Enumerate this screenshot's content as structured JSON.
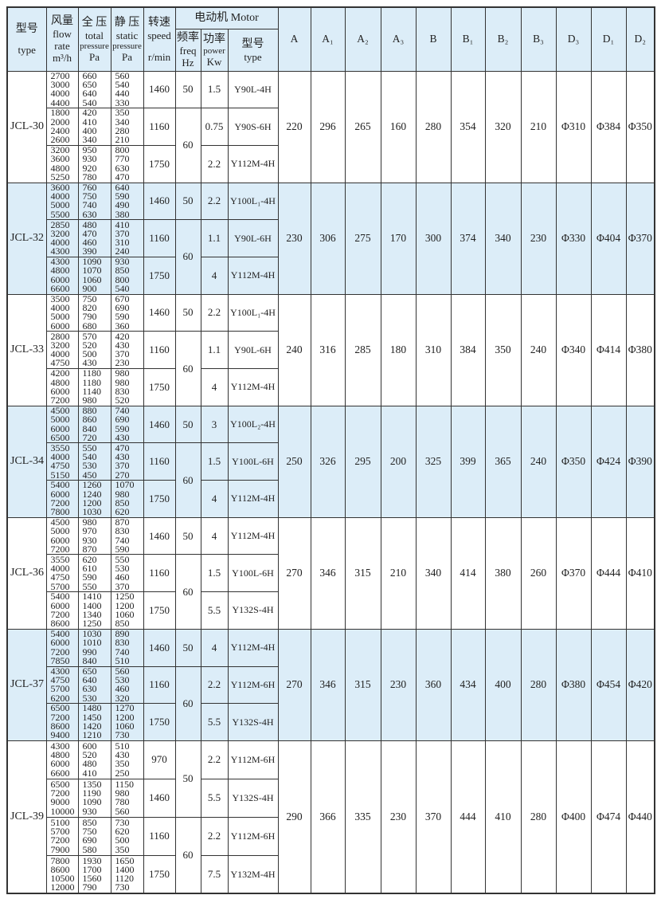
{
  "header": {
    "type": {
      "cn": "型号",
      "en": "type"
    },
    "flow": {
      "cn": "风量",
      "en1": "flow",
      "en2": "rate",
      "unit": "m³/h"
    },
    "total": {
      "cn": "全 压",
      "en1": "total",
      "en2": "pressure",
      "unit": "Pa"
    },
    "static": {
      "cn": "静 压",
      "en1": "static",
      "en2": "pressure",
      "unit": "Pa"
    },
    "speed": {
      "cn": "转速",
      "en": "speed",
      "unit": "r/min"
    },
    "motor": "电动机 Motor",
    "freq": {
      "cn": "频率",
      "en": "freq",
      "unit": "Hz"
    },
    "power": {
      "cn": "功率",
      "en": "power",
      "unit": "Kw"
    },
    "mtype": {
      "cn": "型号",
      "en": "type"
    },
    "dims": [
      "A",
      "A₁",
      "A₂",
      "A₃",
      "B",
      "B₁",
      "B₂",
      "B₃",
      "D₃",
      "D₁",
      "D₂"
    ]
  },
  "models": [
    {
      "name": "JCL-30",
      "shaded": false,
      "dims": [
        "220",
        "296",
        "265",
        "160",
        "280",
        "354",
        "320",
        "210",
        "Φ310",
        "Φ384",
        "Φ350"
      ],
      "hz": [
        {
          "value": "50",
          "span": 1
        },
        {
          "value": "60",
          "span": 2
        }
      ],
      "groups": [
        {
          "flow": [
            "2700",
            "3000",
            "4000",
            "4400"
          ],
          "total": [
            "660",
            "650",
            "640",
            "540"
          ],
          "static": [
            "560",
            "540",
            "440",
            "330"
          ],
          "speed": "1460",
          "kw": "1.5",
          "motor": "Y90L-4H"
        },
        {
          "flow": [
            "1800",
            "2000",
            "2400",
            "2600"
          ],
          "total": [
            "420",
            "410",
            "400",
            "340"
          ],
          "static": [
            "350",
            "340",
            "280",
            "210"
          ],
          "speed": "1160",
          "kw": "0.75",
          "motor": "Y90S-6H"
        },
        {
          "flow": [
            "3200",
            "3600",
            "4800",
            "5250"
          ],
          "total": [
            "950",
            "930",
            "920",
            "780"
          ],
          "static": [
            "800",
            "770",
            "630",
            "470"
          ],
          "speed": "1750",
          "kw": "2.2",
          "motor": "Y112M-4H"
        }
      ]
    },
    {
      "name": "JCL-32",
      "shaded": true,
      "dims": [
        "230",
        "306",
        "275",
        "170",
        "300",
        "374",
        "340",
        "230",
        "Φ330",
        "Φ404",
        "Φ370"
      ],
      "hz": [
        {
          "value": "50",
          "span": 1
        },
        {
          "value": "60",
          "span": 2
        }
      ],
      "groups": [
        {
          "flow": [
            "3600",
            "4000",
            "5000",
            "5500"
          ],
          "total": [
            "760",
            "750",
            "740",
            "630"
          ],
          "static": [
            "640",
            "590",
            "490",
            "380"
          ],
          "speed": "1460",
          "kw": "2.2",
          "motor": "Y100L₁-4H"
        },
        {
          "flow": [
            "2850",
            "3200",
            "4000",
            "4300"
          ],
          "total": [
            "480",
            "470",
            "460",
            "390"
          ],
          "static": [
            "410",
            "370",
            "310",
            "240"
          ],
          "speed": "1160",
          "kw": "1.1",
          "motor": "Y90L-6H"
        },
        {
          "flow": [
            "4300",
            "4800",
            "6000",
            "6600"
          ],
          "total": [
            "1090",
            "1070",
            "1060",
            "900"
          ],
          "static": [
            "930",
            "850",
            "800",
            "540"
          ],
          "speed": "1750",
          "kw": "4",
          "motor": "Y112M-4H"
        }
      ]
    },
    {
      "name": "JCL-33",
      "shaded": false,
      "dims": [
        "240",
        "316",
        "285",
        "180",
        "310",
        "384",
        "350",
        "240",
        "Φ340",
        "Φ414",
        "Φ380"
      ],
      "hz": [
        {
          "value": "50",
          "span": 1
        },
        {
          "value": "60",
          "span": 2
        }
      ],
      "groups": [
        {
          "flow": [
            "3500",
            "4000",
            "5000",
            "6000"
          ],
          "total": [
            "750",
            "820",
            "790",
            "680"
          ],
          "static": [
            "670",
            "690",
            "590",
            "360"
          ],
          "speed": "1460",
          "kw": "2.2",
          "motor": "Y100L₁-4H"
        },
        {
          "flow": [
            "2800",
            "3200",
            "4000",
            "4750"
          ],
          "total": [
            "570",
            "520",
            "500",
            "430"
          ],
          "static": [
            "420",
            "430",
            "370",
            "230"
          ],
          "speed": "1160",
          "kw": "1.1",
          "motor": "Y90L-6H"
        },
        {
          "flow": [
            "4200",
            "4800",
            "6000",
            "7200"
          ],
          "total": [
            "1180",
            "1180",
            "1140",
            "980"
          ],
          "static": [
            "980",
            "980",
            "830",
            "520"
          ],
          "speed": "1750",
          "kw": "4",
          "motor": "Y112M-4H"
        }
      ]
    },
    {
      "name": "JCL-34",
      "shaded": true,
      "dims": [
        "250",
        "326",
        "295",
        "200",
        "325",
        "399",
        "365",
        "240",
        "Φ350",
        "Φ424",
        "Φ390"
      ],
      "hz": [
        {
          "value": "50",
          "span": 1
        },
        {
          "value": "60",
          "span": 2
        }
      ],
      "groups": [
        {
          "flow": [
            "4500",
            "5000",
            "6000",
            "6500"
          ],
          "total": [
            "880",
            "860",
            "840",
            "720"
          ],
          "static": [
            "740",
            "690",
            "590",
            "430"
          ],
          "speed": "1460",
          "kw": "3",
          "motor": "Y100L₂-4H"
        },
        {
          "flow": [
            "3550",
            "4000",
            "4750",
            "5150"
          ],
          "total": [
            "550",
            "540",
            "530",
            "450"
          ],
          "static": [
            "470",
            "430",
            "370",
            "270"
          ],
          "speed": "1160",
          "kw": "1.5",
          "motor": "Y100L-6H"
        },
        {
          "flow": [
            "5400",
            "6000",
            "7200",
            "7800"
          ],
          "total": [
            "1260",
            "1240",
            "1200",
            "1030"
          ],
          "static": [
            "1070",
            "980",
            "850",
            "620"
          ],
          "speed": "1750",
          "kw": "4",
          "motor": "Y112M-4H"
        }
      ]
    },
    {
      "name": "JCL-36",
      "shaded": false,
      "dims": [
        "270",
        "346",
        "315",
        "210",
        "340",
        "414",
        "380",
        "260",
        "Φ370",
        "Φ444",
        "Φ410"
      ],
      "hz": [
        {
          "value": "50",
          "span": 1
        },
        {
          "value": "60",
          "span": 2
        }
      ],
      "groups": [
        {
          "flow": [
            "4500",
            "5000",
            "6000",
            "7200"
          ],
          "total": [
            "980",
            "970",
            "930",
            "870"
          ],
          "static": [
            "870",
            "830",
            "740",
            "590"
          ],
          "speed": "1460",
          "kw": "4",
          "motor": "Y112M-4H"
        },
        {
          "flow": [
            "3550",
            "4000",
            "4750",
            "5700"
          ],
          "total": [
            "620",
            "610",
            "590",
            "550"
          ],
          "static": [
            "550",
            "530",
            "460",
            "370"
          ],
          "speed": "1160",
          "kw": "1.5",
          "motor": "Y100L-6H"
        },
        {
          "flow": [
            "5400",
            "6000",
            "7200",
            "8600"
          ],
          "total": [
            "1410",
            "1400",
            "1340",
            "1250"
          ],
          "static": [
            "1250",
            "1200",
            "1060",
            "850"
          ],
          "speed": "1750",
          "kw": "5.5",
          "motor": "Y132S-4H"
        }
      ]
    },
    {
      "name": "JCL-37",
      "shaded": true,
      "dims": [
        "270",
        "346",
        "315",
        "230",
        "360",
        "434",
        "400",
        "280",
        "Φ380",
        "Φ454",
        "Φ420"
      ],
      "hz": [
        {
          "value": "50",
          "span": 1
        },
        {
          "value": "60",
          "span": 2
        }
      ],
      "groups": [
        {
          "flow": [
            "5400",
            "6000",
            "7200",
            "7850"
          ],
          "total": [
            "1030",
            "1010",
            "990",
            "840"
          ],
          "static": [
            "890",
            "830",
            "740",
            "510"
          ],
          "speed": "1460",
          "kw": "4",
          "motor": "Y112M-4H"
        },
        {
          "flow": [
            "4300",
            "4750",
            "5700",
            "6200"
          ],
          "total": [
            "650",
            "640",
            "630",
            "530"
          ],
          "static": [
            "560",
            "530",
            "460",
            "320"
          ],
          "speed": "1160",
          "kw": "2.2",
          "motor": "Y112M-6H"
        },
        {
          "flow": [
            "6500",
            "7200",
            "8600",
            "9400"
          ],
          "total": [
            "1480",
            "1450",
            "1420",
            "1210"
          ],
          "static": [
            "1270",
            "1200",
            "1060",
            "730"
          ],
          "speed": "1750",
          "kw": "5.5",
          "motor": "Y132S-4H"
        }
      ]
    },
    {
      "name": "JCL-39",
      "shaded": false,
      "dims": [
        "290",
        "366",
        "335",
        "230",
        "370",
        "444",
        "410",
        "280",
        "Φ400",
        "Φ474",
        "Φ440"
      ],
      "hz": [
        {
          "value": "50",
          "span": 2
        },
        {
          "value": "60",
          "span": 2
        }
      ],
      "groups": [
        {
          "flow": [
            "4300",
            "4800",
            "6000",
            "6600"
          ],
          "total": [
            "600",
            "520",
            "480",
            "410"
          ],
          "static": [
            "510",
            "430",
            "350",
            "250"
          ],
          "speed": "970",
          "kw": "2.2",
          "motor": "Y112M-6H"
        },
        {
          "flow": [
            "6500",
            "7200",
            "9000",
            "10000"
          ],
          "total": [
            "1350",
            "1190",
            "1090",
            "930"
          ],
          "static": [
            "1150",
            "980",
            "780",
            "560"
          ],
          "speed": "1460",
          "kw": "5.5",
          "motor": "Y132S-4H"
        },
        {
          "flow": [
            "5100",
            "5700",
            "7200",
            "7900"
          ],
          "total": [
            "850",
            "750",
            "690",
            "580"
          ],
          "static": [
            "730",
            "620",
            "500",
            "350"
          ],
          "speed": "1160",
          "kw": "2.2",
          "motor": "Y112M-6H"
        },
        {
          "flow": [
            "7800",
            "8600",
            "10500",
            "12000"
          ],
          "total": [
            "1930",
            "1700",
            "1560",
            "790"
          ],
          "static": [
            "1650",
            "1400",
            "1120",
            "730"
          ],
          "speed": "1750",
          "kw": "7.5",
          "motor": "Y132M-4H"
        }
      ]
    }
  ]
}
